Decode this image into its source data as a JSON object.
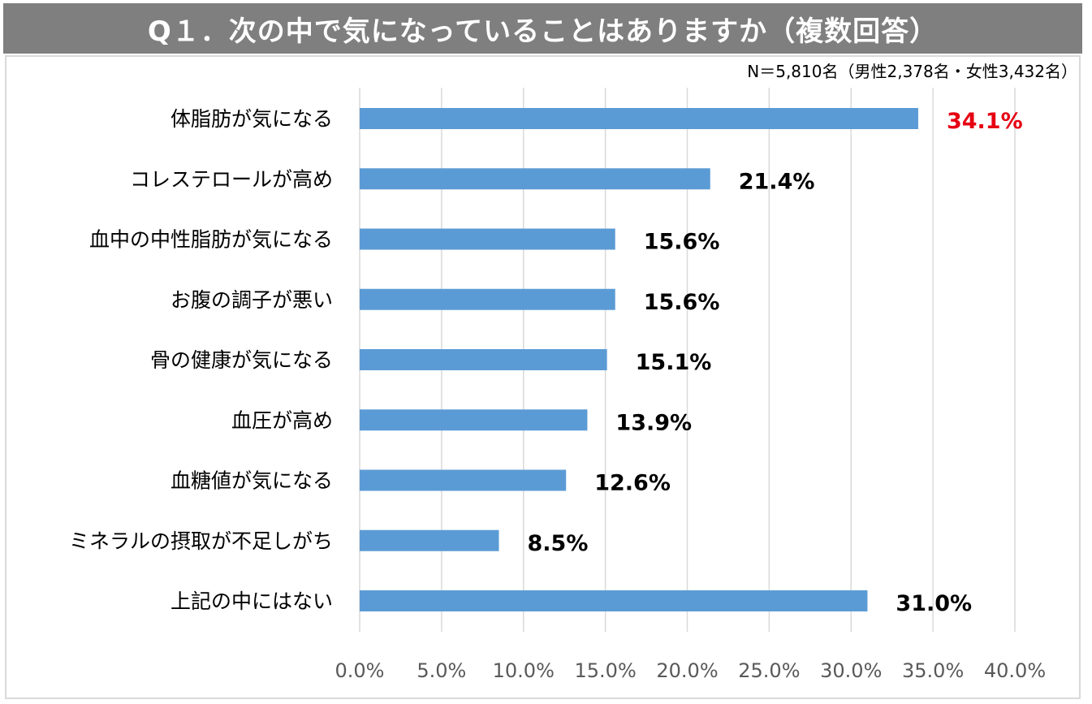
{
  "header": {
    "title": "Q１．次の中で気になっていることはありますか（複数回答）",
    "sample_note": "N＝5,810名（男性2,378名・女性3,432名）"
  },
  "colors": {
    "bar": "#5b9bd5",
    "highlight_label": "#e60012",
    "label": "#000000",
    "grid": "#d9d9d9",
    "tick": "#595959",
    "title_bg": "#7f7f7f"
  },
  "chart_data": {
    "type": "bar",
    "orientation": "horizontal",
    "title": "Q１．次の中で気になっていることはありますか（複数回答）",
    "categories": [
      "体脂肪が気になる",
      "コレステロールが高め",
      "血中の中性脂肪が気になる",
      "お腹の調子が悪い",
      "骨の健康が気になる",
      "血圧が高め",
      "血糖値が気になる",
      "ミネラルの摂取が不足しがち",
      "上記の中にはない"
    ],
    "values": [
      34.1,
      21.4,
      15.6,
      15.6,
      15.1,
      13.9,
      12.6,
      8.5,
      31.0
    ],
    "data_labels": [
      "34.1%",
      "21.4%",
      "15.6%",
      "15.6%",
      "15.1%",
      "13.9%",
      "12.6%",
      "8.5%",
      "31.0%"
    ],
    "highlight_index": 0,
    "xlim": [
      0,
      40
    ],
    "xticks": [
      0,
      5,
      10,
      15,
      20,
      25,
      30,
      35,
      40
    ],
    "xtick_labels": [
      "0.0%",
      "5.0%",
      "10.0%",
      "15.0%",
      "20.0%",
      "25.0%",
      "30.0%",
      "35.0%",
      "40.0%"
    ],
    "grid": true,
    "legend": "none",
    "xlabel": "",
    "ylabel": ""
  }
}
